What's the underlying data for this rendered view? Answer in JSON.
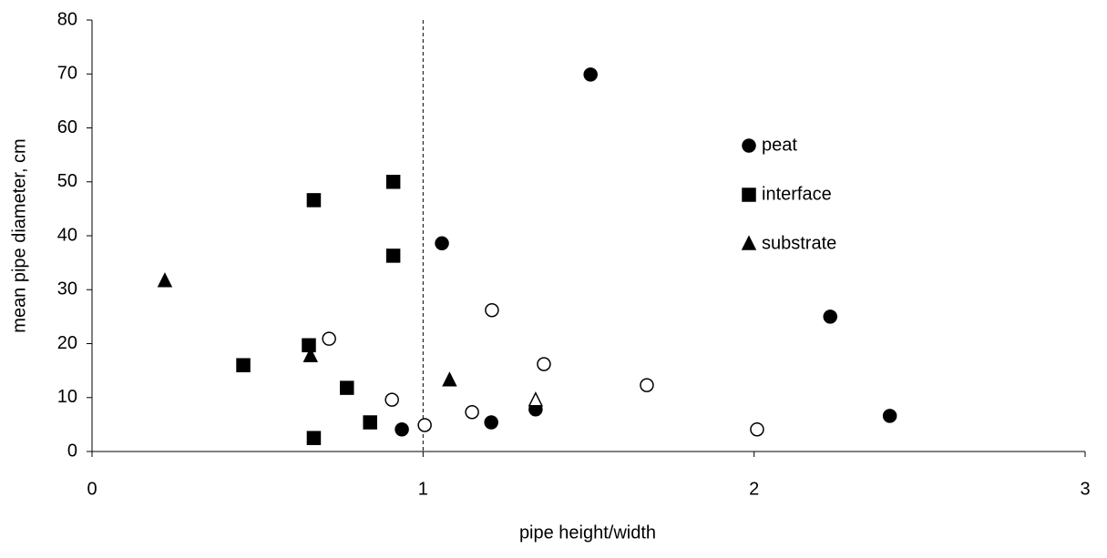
{
  "chart_data": {
    "type": "scatter",
    "xlabel": "pipe height/width",
    "ylabel": "mean pipe diameter, cm",
    "xlim": [
      0,
      3
    ],
    "xticks": [
      0,
      1,
      2,
      3
    ],
    "ylim": [
      0,
      80
    ],
    "yticks": [
      0,
      10,
      20,
      30,
      40,
      50,
      60,
      70,
      80
    ],
    "vline": 1,
    "legend": "upper right",
    "series": [
      {
        "name": "peat",
        "color": "#000000",
        "marker": "circle",
        "filled": true,
        "x": [
          1.506,
          1.057,
          2.23,
          2.41,
          0.936,
          1.206,
          1.34
        ],
        "values": [
          69.9,
          38.6,
          25,
          6.6,
          4.1,
          5.4,
          7.8
        ]
      },
      {
        "name": "interface",
        "color": "#000000",
        "marker": "square",
        "filled": true,
        "x": [
          0.67,
          0.91,
          0.91,
          0.655,
          0.457,
          0.77,
          0.84,
          0.67
        ],
        "values": [
          46.6,
          50,
          36.3,
          19.7,
          16,
          11.8,
          5.4,
          2.5
        ]
      },
      {
        "name": "substrate",
        "color": "#000000",
        "marker": "triangle",
        "filled": true,
        "x": [
          0.22,
          0.66,
          1.08
        ],
        "values": [
          31.6,
          17.7,
          13.2
        ]
      },
      {
        "name": null,
        "color": "#000000",
        "marker": "circle",
        "filled": false,
        "x": [
          0.716,
          0.906,
          1.005,
          1.148,
          1.208,
          1.365,
          1.676,
          2.009
        ],
        "values": [
          20.9,
          9.6,
          4.9,
          7.3,
          26.2,
          16.2,
          12.3,
          4.1
        ]
      },
      {
        "name": null,
        "color": "#000000",
        "marker": "triangle",
        "filled": false,
        "x": [
          1.34
        ],
        "values": [
          9.5
        ]
      }
    ]
  }
}
